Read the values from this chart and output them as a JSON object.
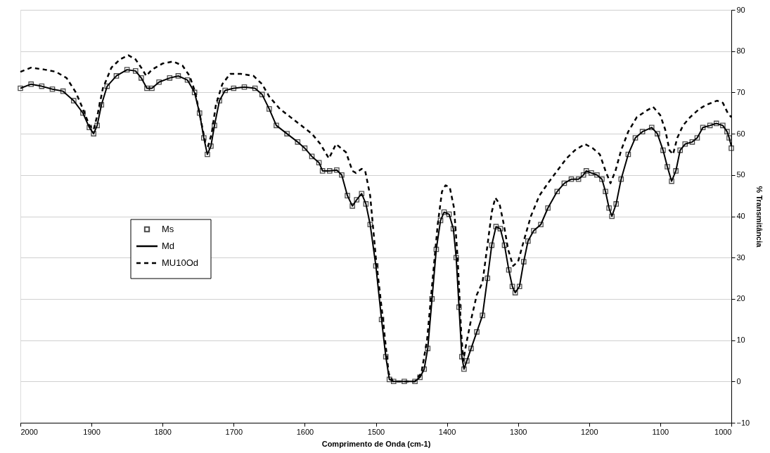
{
  "chart_data": {
    "type": "line",
    "xlabel": "Comprimento de Onda (cm-1)",
    "ylabel": "% Transmitância",
    "xlim": [
      2000,
      1000
    ],
    "xticks": [
      2000,
      1900,
      1800,
      1700,
      1600,
      1500,
      1400,
      1300,
      1200,
      1100,
      1000
    ],
    "ylim": [
      -10,
      90
    ],
    "yticks": [
      -10,
      0,
      10,
      20,
      30,
      40,
      50,
      60,
      70,
      80,
      90
    ],
    "grid": "y",
    "legend": "left",
    "x": [
      2000,
      1985,
      1970,
      1955,
      1940,
      1925,
      1912,
      1903,
      1897,
      1892,
      1886,
      1878,
      1865,
      1850,
      1838,
      1830,
      1822,
      1815,
      1805,
      1790,
      1778,
      1765,
      1755,
      1748,
      1742,
      1737,
      1732,
      1727,
      1720,
      1712,
      1700,
      1685,
      1670,
      1660,
      1650,
      1640,
      1625,
      1610,
      1600,
      1590,
      1580,
      1575,
      1565,
      1555,
      1548,
      1540,
      1533,
      1527,
      1520,
      1514,
      1508,
      1500,
      1492,
      1486,
      1481,
      1475,
      1460,
      1445,
      1438,
      1432,
      1427,
      1421,
      1415,
      1409,
      1404,
      1397,
      1391,
      1387,
      1383,
      1379,
      1376,
      1372,
      1366,
      1358,
      1350,
      1343,
      1337,
      1331,
      1325,
      1319,
      1313,
      1308,
      1304,
      1298,
      1292,
      1286,
      1278,
      1268,
      1258,
      1245,
      1235,
      1225,
      1215,
      1208,
      1204,
      1197,
      1189,
      1182,
      1177,
      1172,
      1168,
      1162,
      1155,
      1145,
      1135,
      1125,
      1112,
      1104,
      1096,
      1090,
      1084,
      1078,
      1072,
      1065,
      1055,
      1048,
      1040,
      1030,
      1021,
      1012,
      1006,
      1003,
      1000
    ],
    "series": [
      {
        "name": "Ms",
        "type": "scatter",
        "marker": "square",
        "color": "#000000",
        "values": [
          71,
          72,
          71.5,
          70.8,
          70.3,
          68,
          65,
          61.5,
          60,
          62,
          67,
          71.5,
          74,
          75.5,
          75.2,
          73.5,
          71,
          71,
          72.5,
          73.5,
          74,
          73,
          70,
          65,
          59,
          55,
          57,
          62,
          68,
          70.5,
          71,
          71.3,
          71,
          69.5,
          66,
          62,
          60,
          58,
          56.5,
          54.5,
          53,
          51,
          51,
          51.2,
          50,
          45,
          42.5,
          44,
          45.5,
          43,
          38,
          28,
          15,
          6,
          0.5,
          0,
          0,
          0,
          1,
          3,
          8,
          20,
          32,
          39,
          41,
          40.5,
          37,
          30,
          18,
          6,
          3,
          5,
          8,
          12,
          16,
          25,
          33,
          37.5,
          37,
          33,
          27,
          23,
          21.5,
          23,
          29,
          34,
          36.5,
          38,
          42,
          46,
          48,
          49,
          49,
          50,
          51,
          50.5,
          50,
          49,
          46,
          42,
          40,
          43,
          49,
          55,
          59,
          60.5,
          61.5,
          60,
          56,
          52,
          48.5,
          51,
          56,
          57.5,
          58,
          59,
          61.5,
          62,
          62.5,
          62,
          60.5,
          59,
          56.5
        ]
      },
      {
        "name": "Md",
        "type": "line",
        "line_style": "solid",
        "color": "#000000",
        "values": [
          71,
          72,
          71.5,
          70.8,
          70.3,
          68,
          65,
          61.5,
          60,
          62,
          67,
          71.5,
          74,
          75.5,
          75.2,
          73.5,
          71,
          71,
          72.5,
          73.5,
          74,
          73,
          70,
          65,
          59,
          55,
          57,
          62,
          68,
          70.5,
          71,
          71.3,
          71,
          69.5,
          66,
          62,
          60,
          58,
          56.5,
          54.5,
          53,
          51,
          51,
          51.2,
          50,
          45,
          42.5,
          44,
          45.5,
          43,
          38,
          28,
          15,
          6,
          0.5,
          0,
          0,
          0,
          1,
          3,
          8,
          20,
          32,
          39,
          41,
          40.5,
          37,
          30,
          18,
          6,
          3,
          5,
          8,
          12,
          16,
          25,
          33,
          37.5,
          37,
          33,
          27,
          23,
          21.5,
          23,
          29,
          34,
          36.5,
          38,
          42,
          46,
          48,
          49,
          49,
          50,
          51,
          50.5,
          50,
          49,
          46,
          42,
          40,
          43,
          49,
          55,
          59,
          60.5,
          61.5,
          60,
          56,
          52,
          48.5,
          51,
          56,
          57.5,
          58,
          59,
          61.5,
          62,
          62.5,
          62,
          60.5,
          59,
          57
        ]
      },
      {
        "name": "MU10Od",
        "type": "line",
        "line_style": "dashed",
        "color": "#000000",
        "x": [
          2000,
          1985,
          1965,
          1950,
          1935,
          1922,
          1912,
          1903,
          1897,
          1891,
          1884,
          1872,
          1860,
          1848,
          1838,
          1830,
          1823,
          1815,
          1800,
          1785,
          1772,
          1762,
          1754,
          1747,
          1740,
          1736,
          1731,
          1725,
          1716,
          1705,
          1690,
          1672,
          1660,
          1650,
          1635,
          1620,
          1605,
          1590,
          1578,
          1566,
          1556,
          1542,
          1533,
          1528,
          1520,
          1515,
          1508,
          1500,
          1490,
          1482,
          1476,
          1445,
          1436,
          1428,
          1420,
          1413,
          1407,
          1402,
          1396,
          1390,
          1385,
          1380,
          1377,
          1373,
          1366,
          1358,
          1350,
          1343,
          1337,
          1332,
          1326,
          1320,
          1314,
          1307,
          1300,
          1292,
          1282,
          1270,
          1258,
          1245,
          1232,
          1220,
          1206,
          1195,
          1185,
          1177,
          1170,
          1163,
          1155,
          1145,
          1133,
          1120,
          1110,
          1100,
          1093,
          1087,
          1082,
          1076,
          1068,
          1058,
          1045,
          1035,
          1020,
          1012,
          1005,
          1000
        ],
        "values": [
          75,
          76,
          75.5,
          75,
          73.5,
          70,
          66,
          62,
          61,
          65,
          71,
          76,
          78,
          79,
          78,
          76,
          74,
          75.5,
          77,
          77.5,
          76.5,
          74,
          70,
          64,
          58,
          57,
          60,
          67,
          72,
          74.5,
          74.5,
          74,
          72,
          69,
          66,
          64,
          62,
          60,
          57.5,
          54,
          57.5,
          55.5,
          51,
          50.5,
          51.5,
          51,
          45,
          30,
          15,
          2,
          0,
          0,
          2,
          10,
          25,
          38,
          46,
          47.5,
          47,
          42,
          30,
          12,
          5,
          9,
          15,
          21,
          24,
          33,
          41,
          44.5,
          43,
          38,
          32,
          28,
          29,
          34,
          40,
          45,
          48,
          51,
          54,
          56,
          57.5,
          56.5,
          55,
          51,
          48,
          51,
          56,
          60.5,
          64,
          65.5,
          66.5,
          64.5,
          61,
          56,
          55,
          59,
          62,
          64,
          66,
          67,
          68,
          67.5,
          65,
          64
        ]
      }
    ]
  }
}
